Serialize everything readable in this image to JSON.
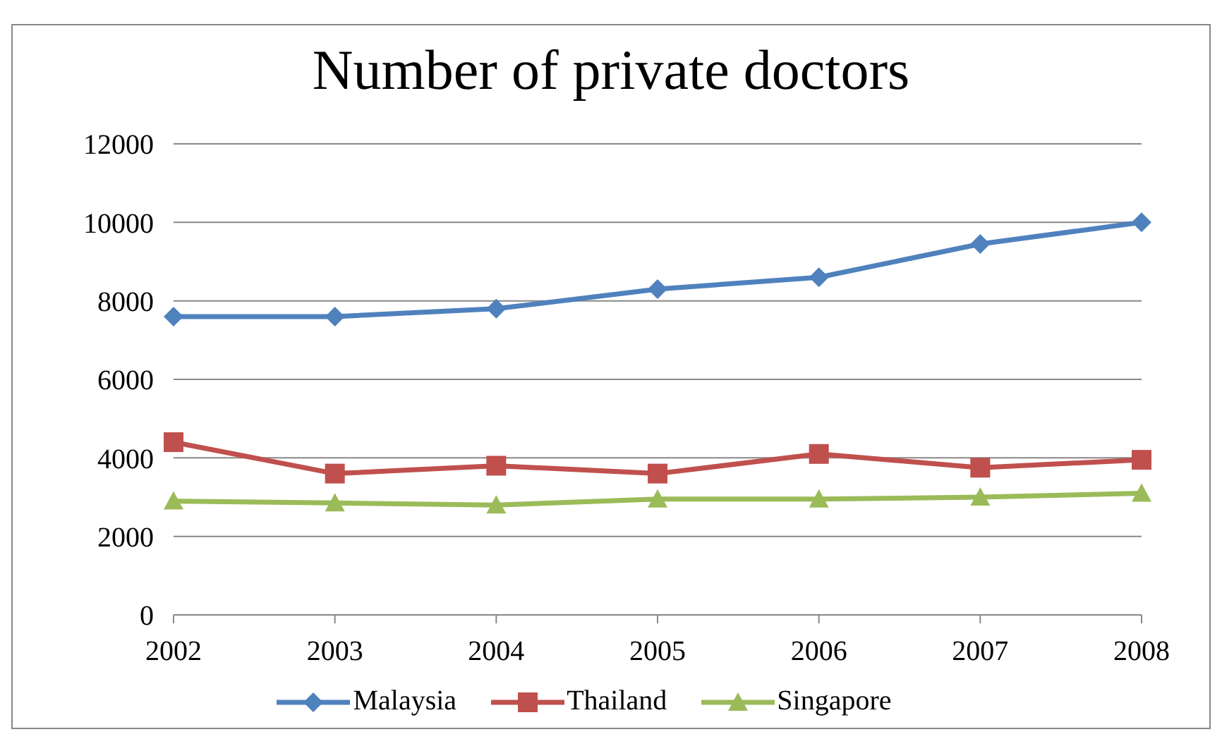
{
  "chart_data": {
    "type": "line",
    "title": "Number of private doctors",
    "categories": [
      "2002",
      "2003",
      "2004",
      "2005",
      "2006",
      "2007",
      "2008"
    ],
    "series": [
      {
        "name": "Malaysia",
        "color": "#4f81bd",
        "marker": "diamond",
        "values": [
          7600,
          7600,
          7800,
          8300,
          8600,
          9450,
          10000
        ]
      },
      {
        "name": "Thailand",
        "color": "#c0504d",
        "marker": "square",
        "values": [
          4400,
          3600,
          3800,
          3600,
          4100,
          3750,
          3950
        ]
      },
      {
        "name": "Singapore",
        "color": "#9bbb59",
        "marker": "triangle",
        "values": [
          2900,
          2850,
          2800,
          2950,
          2950,
          3000,
          3100
        ]
      }
    ],
    "ylim": [
      0,
      12000
    ],
    "yticks": [
      0,
      2000,
      4000,
      6000,
      8000,
      10000,
      12000
    ],
    "grid": "y",
    "legend": "bottom"
  }
}
